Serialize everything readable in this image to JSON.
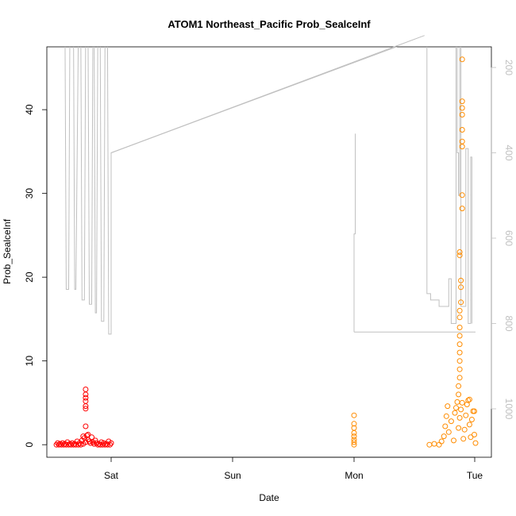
{
  "chart_data": {
    "type": "scatter",
    "title": "ATOM1 Northeast_Pacific Prob_SealceInf",
    "xlabel": "Date",
    "ylabel": "Prob_SealceInf",
    "x_ticks": [
      "Sat",
      "Sun",
      "Mon",
      "Tue"
    ],
    "ylim": [
      -1.5,
      47.5
    ],
    "y_ticks": [
      0,
      10,
      20,
      30,
      40
    ],
    "y2_ticks": [
      200,
      400,
      600,
      800,
      1000
    ],
    "y2_reversed": true,
    "grid": false,
    "series": [
      {
        "color": "#ff0000",
        "marker": "open-circle",
        "points": [
          [
            -0.45,
            0
          ],
          [
            -0.44,
            0.2
          ],
          [
            -0.43,
            0
          ],
          [
            -0.42,
            0.1
          ],
          [
            -0.41,
            0
          ],
          [
            -0.4,
            0.2
          ],
          [
            -0.39,
            0
          ],
          [
            -0.38,
            0.1
          ],
          [
            -0.37,
            0
          ],
          [
            -0.36,
            0.3
          ],
          [
            -0.35,
            0
          ],
          [
            -0.34,
            0.1
          ],
          [
            -0.33,
            0
          ],
          [
            -0.32,
            0.2
          ],
          [
            -0.31,
            0
          ],
          [
            -0.3,
            0.1
          ],
          [
            -0.29,
            0
          ],
          [
            -0.28,
            0.4
          ],
          [
            -0.27,
            0
          ],
          [
            -0.26,
            0.2
          ],
          [
            -0.25,
            0
          ],
          [
            -0.24,
            0.5
          ],
          [
            -0.23,
            0.1
          ],
          [
            -0.22,
            0.8
          ],
          [
            -0.21,
            0.3
          ],
          [
            -0.2,
            1.1
          ],
          [
            -0.19,
            0.6
          ],
          [
            -0.18,
            0.4
          ],
          [
            -0.17,
            0.2
          ],
          [
            -0.16,
            0.9
          ],
          [
            -0.15,
            0.3
          ],
          [
            -0.14,
            0.1
          ],
          [
            -0.13,
            0.5
          ],
          [
            -0.12,
            0.2
          ],
          [
            -0.11,
            0
          ],
          [
            -0.1,
            0.1
          ],
          [
            -0.09,
            0
          ],
          [
            -0.08,
            0.3
          ],
          [
            -0.07,
            0
          ],
          [
            -0.06,
            0.2
          ],
          [
            -0.05,
            0
          ],
          [
            -0.04,
            0.1
          ],
          [
            -0.03,
            0
          ],
          [
            -0.02,
            0.4
          ],
          [
            -0.01,
            0
          ],
          [
            0.0,
            0.2
          ],
          [
            -0.21,
            6.6
          ],
          [
            -0.21,
            6.0
          ],
          [
            -0.21,
            5.6
          ],
          [
            -0.21,
            5.2
          ],
          [
            -0.21,
            4.6
          ],
          [
            -0.21,
            4.3
          ],
          [
            -0.21,
            2.2
          ],
          [
            -0.19,
            1.2
          ],
          [
            -0.23,
            1.0
          ]
        ]
      },
      {
        "color": "#ff8c00",
        "marker": "open-circle",
        "points": [
          [
            2.0,
            0
          ],
          [
            2.0,
            0.3
          ],
          [
            2.0,
            0.6
          ],
          [
            2.0,
            1.0
          ],
          [
            2.0,
            1.4
          ],
          [
            2.0,
            2.0
          ],
          [
            2.0,
            2.5
          ],
          [
            2.0,
            3.5
          ],
          [
            2.62,
            0
          ],
          [
            2.66,
            0.1
          ],
          [
            2.7,
            0
          ],
          [
            2.72,
            0.4
          ],
          [
            2.74,
            1.0
          ],
          [
            2.75,
            2.2
          ],
          [
            2.76,
            3.4
          ],
          [
            2.77,
            4.6
          ],
          [
            2.78,
            1.5
          ],
          [
            2.8,
            2.8
          ],
          [
            2.82,
            0.5
          ],
          [
            2.83,
            3.8
          ],
          [
            2.84,
            4.4
          ],
          [
            2.85,
            5.1
          ],
          [
            2.86,
            2.0
          ],
          [
            2.87,
            3.2
          ],
          [
            2.88,
            4.2
          ],
          [
            2.89,
            5.0
          ],
          [
            2.9,
            0.7
          ],
          [
            2.91,
            1.8
          ],
          [
            2.92,
            3.5
          ],
          [
            2.93,
            4.8
          ],
          [
            2.94,
            5.3
          ],
          [
            2.95,
            2.4
          ],
          [
            2.96,
            0.9
          ],
          [
            2.97,
            3.0
          ],
          [
            2.98,
            4.0
          ],
          [
            2.99,
            1.2
          ],
          [
            3.0,
            0.2
          ],
          [
            2.86,
            6.0
          ],
          [
            2.86,
            7.0
          ],
          [
            2.87,
            8.0
          ],
          [
            2.87,
            9.0
          ],
          [
            2.87,
            10.0
          ],
          [
            2.87,
            11.0
          ],
          [
            2.87,
            12.0
          ],
          [
            2.87,
            13.0
          ],
          [
            2.87,
            14.0
          ],
          [
            2.87,
            15.2
          ],
          [
            2.87,
            16.0
          ],
          [
            2.88,
            17.0
          ],
          [
            2.88,
            18.8
          ],
          [
            2.88,
            19.6
          ],
          [
            2.87,
            22.6
          ],
          [
            2.87,
            23.0
          ],
          [
            2.89,
            28.2
          ],
          [
            2.89,
            29.8
          ],
          [
            2.89,
            35.6
          ],
          [
            2.89,
            36.2
          ],
          [
            2.89,
            37.6
          ],
          [
            2.89,
            39.4
          ],
          [
            2.89,
            40.2
          ],
          [
            2.89,
            41.0
          ],
          [
            2.89,
            46.0
          ],
          [
            2.95,
            5.4
          ],
          [
            2.99,
            4.0
          ]
        ]
      }
    ],
    "secondary_line": {
      "color": "#c0c0c0",
      "axis": "right",
      "points": [
        [
          -0.4,
          120
        ],
        [
          -0.38,
          120
        ],
        [
          -0.37,
          720
        ],
        [
          -0.35,
          720
        ],
        [
          -0.34,
          120
        ],
        [
          -0.31,
          120
        ],
        [
          -0.3,
          720
        ],
        [
          -0.29,
          720
        ],
        [
          -0.27,
          120
        ],
        [
          -0.25,
          120
        ],
        [
          -0.24,
          745
        ],
        [
          -0.22,
          745
        ],
        [
          -0.21,
          120
        ],
        [
          -0.19,
          120
        ],
        [
          -0.18,
          755
        ],
        [
          -0.16,
          755
        ],
        [
          -0.15,
          120
        ],
        [
          -0.14,
          120
        ],
        [
          -0.13,
          775
        ],
        [
          -0.12,
          775
        ],
        [
          -0.11,
          120
        ],
        [
          -0.09,
          120
        ],
        [
          -0.08,
          795
        ],
        [
          -0.06,
          795
        ],
        [
          -0.05,
          120
        ],
        [
          -0.03,
          120
        ],
        [
          -0.02,
          825
        ],
        [
          0.0,
          825
        ],
        [
          0.0,
          400
        ],
        [
          2.6,
          125
        ],
        [
          2.6,
          730
        ],
        [
          2.63,
          730
        ],
        [
          2.63,
          745
        ],
        [
          2.7,
          745
        ],
        [
          2.7,
          760
        ],
        [
          2.78,
          760
        ],
        [
          2.78,
          695
        ],
        [
          2.8,
          695
        ],
        [
          2.8,
          800
        ],
        [
          2.84,
          800
        ],
        [
          2.84,
          130
        ],
        [
          2.85,
          130
        ],
        [
          2.85,
          400
        ],
        [
          2.86,
          400
        ],
        [
          2.86,
          500
        ],
        [
          2.87,
          500
        ],
        [
          2.87,
          130
        ],
        [
          2.88,
          130
        ],
        [
          2.88,
          760
        ],
        [
          2.92,
          760
        ],
        [
          2.92,
          390
        ],
        [
          2.94,
          390
        ],
        [
          2.94,
          800
        ],
        [
          2.96,
          800
        ],
        [
          2.96,
          410
        ],
        [
          2.97,
          410
        ],
        [
          2.97,
          800
        ]
      ]
    }
  }
}
